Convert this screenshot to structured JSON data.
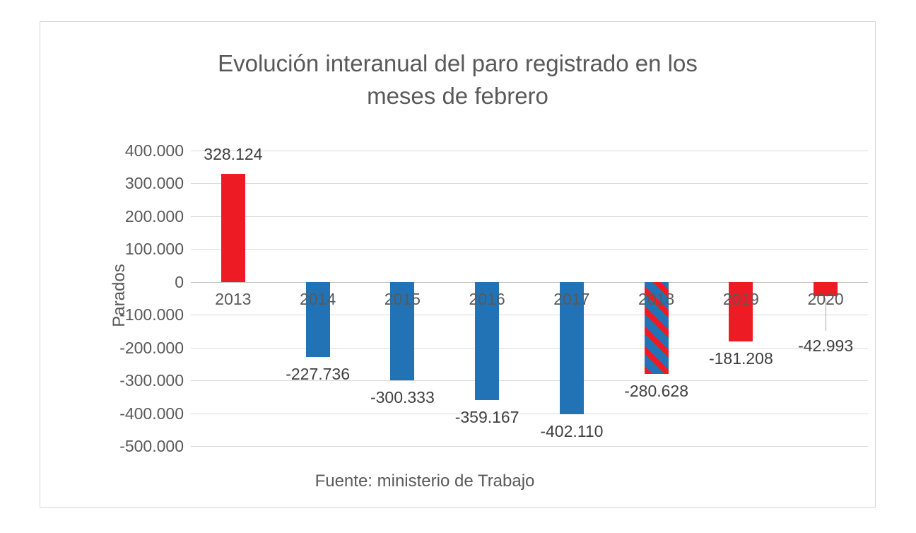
{
  "chart_data": {
    "type": "bar",
    "title": "Evolución interanual del paro registrado en los meses de febrero",
    "title_lines": [
      "Evolución interanual del paro registrado en los",
      "meses de febrero"
    ],
    "ylabel": "Parados",
    "xlabel": "",
    "source_note": "Fuente: ministerio de Trabajo",
    "legend": "none",
    "grid": true,
    "ylim": [
      -500000,
      400000
    ],
    "ytick_step": 100000,
    "yticks": [
      {
        "value": 400000,
        "label": "400.000"
      },
      {
        "value": 300000,
        "label": "300.000"
      },
      {
        "value": 200000,
        "label": "200.000"
      },
      {
        "value": 100000,
        "label": "100.000"
      },
      {
        "value": 0,
        "label": "0"
      },
      {
        "value": -100000,
        "label": "-100.000"
      },
      {
        "value": -200000,
        "label": "-200.000"
      },
      {
        "value": -300000,
        "label": "-300.000"
      },
      {
        "value": -400000,
        "label": "-400.000"
      },
      {
        "value": -500000,
        "label": "-500.000"
      }
    ],
    "categories": [
      "2013",
      "2014",
      "2015",
      "2016",
      "2017",
      "2018",
      "2019",
      "2020"
    ],
    "points": [
      {
        "category": "2013",
        "value": 328124,
        "label": "328.124",
        "fill": "red",
        "label_position": "above"
      },
      {
        "category": "2014",
        "value": -227736,
        "label": "-227.736",
        "fill": "blue"
      },
      {
        "category": "2015",
        "value": -300333,
        "label": "-300.333",
        "fill": "blue"
      },
      {
        "category": "2016",
        "value": -359167,
        "label": "-359.167",
        "fill": "blue"
      },
      {
        "category": "2017",
        "value": -402110,
        "label": "-402.110",
        "fill": "blue"
      },
      {
        "category": "2018",
        "value": -280628,
        "label": "-280.628",
        "fill": "striped-red-blue"
      },
      {
        "category": "2019",
        "value": -181208,
        "label": "-181.208",
        "fill": "red"
      },
      {
        "category": "2020",
        "value": -42993,
        "label": "-42.993",
        "fill": "red",
        "leader_line": true,
        "label_drop": 58
      }
    ],
    "colors": {
      "red": "#ED1C24",
      "blue": "#2273B5",
      "stripe_red": "#ED1C24",
      "stripe_blue": "#2273B5",
      "gridline": "#D9D9D9",
      "zero_axis": "#BFBFBF",
      "tick_text": "#595959",
      "label_text": "#404040",
      "title_text": "#595959",
      "leader_line": "#A6A6A6"
    }
  }
}
